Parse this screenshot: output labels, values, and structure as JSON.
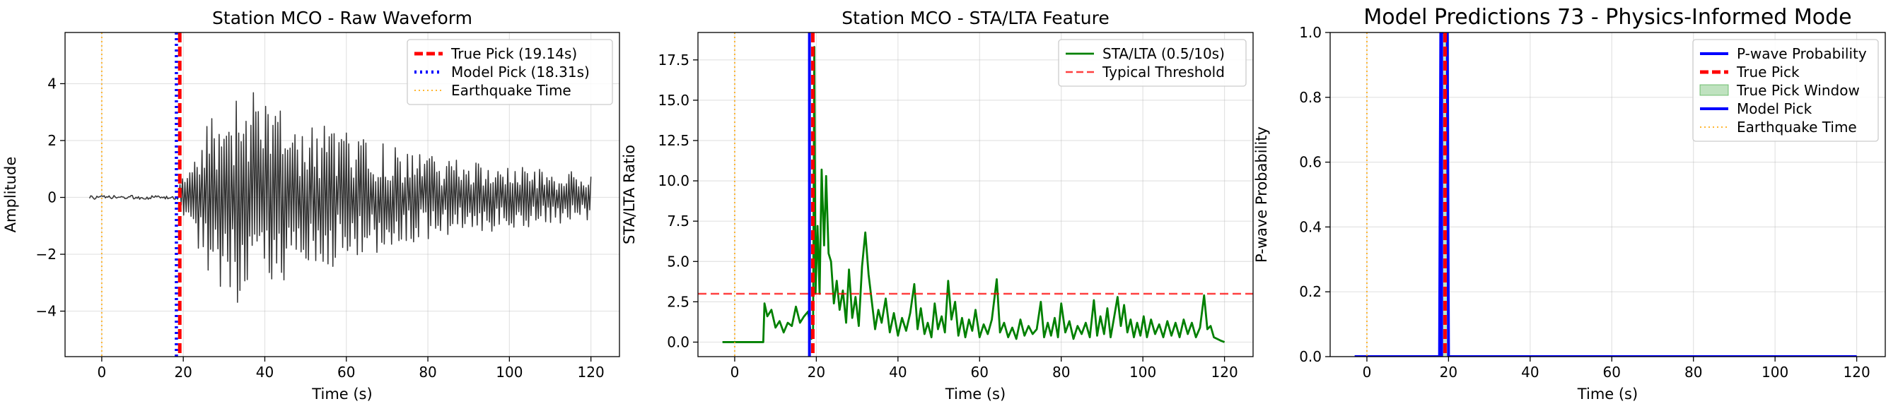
{
  "chart_data": [
    {
      "type": "line",
      "title": "Station MCO - Raw Waveform",
      "xlabel": "Time (s)",
      "ylabel": "Amplitude",
      "xlim": [
        -9,
        127
      ],
      "ylim": [
        -5.6,
        5.8
      ],
      "xticks": [
        0,
        20,
        40,
        60,
        80,
        100,
        120
      ],
      "yticks": [
        -4,
        -2,
        0,
        2,
        4
      ],
      "ytick_labels": [
        "−4",
        "−2",
        "0",
        "2",
        "4"
      ],
      "grid": true,
      "legend_position": "top-right",
      "series": [
        {
          "name": "",
          "kind": "waveform",
          "color": "#333333",
          "x_start": -3,
          "x_end": 120,
          "onset": 19.14
        }
      ],
      "vlines": [
        {
          "name": "True Pick (19.14s)",
          "x": 19.14,
          "color": "#ff0000",
          "style": "dashed"
        },
        {
          "name": "Model Pick (18.31s)",
          "x": 18.31,
          "color": "#0000ff",
          "style": "dotted"
        },
        {
          "name": "Earthquake Time",
          "x": 0,
          "color": "#ffa500",
          "style": "dotted-thin"
        }
      ]
    },
    {
      "type": "line",
      "title": "Station MCO - STA/LTA Feature",
      "xlabel": "Time (s)",
      "ylabel": "STA/LTA Ratio",
      "xlim": [
        -9,
        127
      ],
      "ylim": [
        -0.9,
        19.2
      ],
      "xticks": [
        0,
        20,
        40,
        60,
        80,
        100,
        120
      ],
      "yticks": [
        0,
        2.5,
        5,
        7.5,
        10,
        12.5,
        15,
        17.5
      ],
      "ytick_labels": [
        "0.0",
        "2.5",
        "5.0",
        "7.5",
        "10.0",
        "12.5",
        "15.0",
        "17.5"
      ],
      "grid": true,
      "legend_position": "top-right",
      "series": [
        {
          "name": "STA/LTA (0.5/10s)",
          "color": "#008000",
          "points": [
            [
              -3,
              0
            ],
            [
              7,
              0
            ],
            [
              7.3,
              2.4
            ],
            [
              8,
              1.6
            ],
            [
              9,
              2.0
            ],
            [
              10,
              0.9
            ],
            [
              11,
              1.3
            ],
            [
              12,
              0.6
            ],
            [
              13,
              1.2
            ],
            [
              14,
              1.0
            ],
            [
              15,
              2.2
            ],
            [
              16,
              1.2
            ],
            [
              17,
              1.6
            ],
            [
              18,
              1.9
            ],
            [
              18.8,
              0.2
            ],
            [
              19.2,
              0.4
            ],
            [
              19.5,
              18.3
            ],
            [
              19.8,
              3.0
            ],
            [
              20.3,
              7.2
            ],
            [
              20.8,
              3.0
            ],
            [
              21.3,
              10.7
            ],
            [
              21.9,
              6.0
            ],
            [
              22.4,
              10.3
            ],
            [
              23,
              5.5
            ],
            [
              23.6,
              5.0
            ],
            [
              24.3,
              2.4
            ],
            [
              25,
              3.8
            ],
            [
              25.7,
              2.0
            ],
            [
              26.5,
              3.2
            ],
            [
              27.3,
              1.2
            ],
            [
              28,
              4.5
            ],
            [
              28.8,
              1.5
            ],
            [
              29.6,
              2.8
            ],
            [
              30.4,
              1.0
            ],
            [
              31.2,
              4.7
            ],
            [
              32,
              6.8
            ],
            [
              32.8,
              4.2
            ],
            [
              33.6,
              2.5
            ],
            [
              34.4,
              0.8
            ],
            [
              35.2,
              2.0
            ],
            [
              36,
              1.2
            ],
            [
              37,
              2.7
            ],
            [
              38,
              0.6
            ],
            [
              39,
              1.8
            ],
            [
              40,
              0.4
            ],
            [
              41,
              1.5
            ],
            [
              42,
              0.7
            ],
            [
              43,
              1.8
            ],
            [
              44,
              3.6
            ],
            [
              44.8,
              0.8
            ],
            [
              45.6,
              2.1
            ],
            [
              46.5,
              0.5
            ],
            [
              47.3,
              1.2
            ],
            [
              48.2,
              0.3
            ],
            [
              49,
              2.4
            ],
            [
              49.8,
              0.8
            ],
            [
              50.7,
              1.6
            ],
            [
              51.5,
              0.6
            ],
            [
              52.3,
              3.8
            ],
            [
              53.1,
              1.4
            ],
            [
              54,
              2.5
            ],
            [
              54.8,
              0.4
            ],
            [
              55.7,
              1.5
            ],
            [
              56.5,
              0.3
            ],
            [
              57.4,
              1.4
            ],
            [
              58.2,
              0.7
            ],
            [
              59,
              2.0
            ],
            [
              60,
              0.3
            ],
            [
              61,
              1.1
            ],
            [
              62,
              0.5
            ],
            [
              63,
              1.4
            ],
            [
              64.2,
              3.9
            ],
            [
              65,
              0.6
            ],
            [
              66,
              1.2
            ],
            [
              67,
              0.3
            ],
            [
              68,
              0.9
            ],
            [
              69,
              0.2
            ],
            [
              70,
              1.4
            ],
            [
              71,
              0.4
            ],
            [
              72,
              1.0
            ],
            [
              73,
              0.5
            ],
            [
              74,
              0.8
            ],
            [
              75,
              2.5
            ],
            [
              75.8,
              0.3
            ],
            [
              76.7,
              1.2
            ],
            [
              77.5,
              0.4
            ],
            [
              78.4,
              1.5
            ],
            [
              79.2,
              0.3
            ],
            [
              80,
              2.4
            ],
            [
              81,
              0.6
            ],
            [
              82,
              1.3
            ],
            [
              83,
              0.2
            ],
            [
              84,
              1.0
            ],
            [
              85,
              0.5
            ],
            [
              86,
              1.2
            ],
            [
              87,
              0.3
            ],
            [
              88,
              2.6
            ],
            [
              88.8,
              0.4
            ],
            [
              89.6,
              1.6
            ],
            [
              90.5,
              0.5
            ],
            [
              91.3,
              2.1
            ],
            [
              92.1,
              0.3
            ],
            [
              93,
              1.6
            ],
            [
              93.8,
              2.8
            ],
            [
              94.6,
              1.0
            ],
            [
              95.4,
              2.3
            ],
            [
              96.2,
              0.6
            ],
            [
              97,
              1.4
            ],
            [
              97.8,
              0.3
            ],
            [
              98.6,
              1.2
            ],
            [
              99.4,
              0.4
            ],
            [
              100.2,
              1.6
            ],
            [
              101,
              0.3
            ],
            [
              102,
              1.4
            ],
            [
              103,
              0.5
            ],
            [
              104,
              1.1
            ],
            [
              105,
              0.3
            ],
            [
              106,
              1.3
            ],
            [
              107,
              0.4
            ],
            [
              108,
              1.2
            ],
            [
              109,
              0.3
            ],
            [
              110,
              1.4
            ],
            [
              111,
              0.5
            ],
            [
              112,
              1.2
            ],
            [
              113,
              0.3
            ],
            [
              114,
              0.9
            ],
            [
              115,
              2.9
            ],
            [
              115.8,
              0.8
            ],
            [
              116.6,
              1.0
            ],
            [
              117.4,
              0.3
            ],
            [
              118.2,
              0.2
            ],
            [
              119,
              0.1
            ],
            [
              120,
              0.0
            ]
          ]
        },
        {
          "name": "Typical Threshold",
          "kind": "hline",
          "y": 3.0,
          "color": "#ff0000",
          "style": "dashed"
        }
      ],
      "vlines": [
        {
          "name": "",
          "x": 19.14,
          "color": "#ff0000",
          "style": "dashed"
        },
        {
          "name": "",
          "x": 18.31,
          "color": "#0000ff",
          "style": "solid"
        },
        {
          "name": "",
          "x": 0,
          "color": "#ffa500",
          "style": "dotted-thin"
        }
      ]
    },
    {
      "type": "line",
      "title": "Model Predictions 73 - Physics-Informed Mode",
      "xlabel": "Time (s)",
      "ylabel": "P-wave Probability",
      "xlim": [
        -9,
        127
      ],
      "ylim": [
        0,
        1
      ],
      "xticks": [
        0,
        20,
        40,
        60,
        80,
        100,
        120
      ],
      "yticks": [
        0,
        0.2,
        0.4,
        0.6,
        0.8,
        1.0
      ],
      "ytick_labels": [
        "0.0",
        "0.2",
        "0.4",
        "0.6",
        "0.8",
        "1.0"
      ],
      "grid": true,
      "legend_position": "top-right",
      "series": [
        {
          "name": "P-wave Probability",
          "color": "#0000ff",
          "points": [
            [
              -3,
              0
            ],
            [
              17.8,
              0
            ],
            [
              18.1,
              1.0
            ],
            [
              19.7,
              1.0
            ],
            [
              20.0,
              0
            ],
            [
              120,
              0
            ]
          ]
        }
      ],
      "spans": [
        {
          "name": "True Pick Window",
          "x0": 18.14,
          "x1": 20.14,
          "color": "#2ca02c"
        }
      ],
      "vlines": [
        {
          "name": "True Pick",
          "x": 19.14,
          "color": "#ff0000",
          "style": "dashed"
        },
        {
          "name": "Model Pick",
          "x": 18.31,
          "color": "#0000ff",
          "style": "solid"
        },
        {
          "name": "Earthquake Time",
          "x": 0,
          "color": "#ffa500",
          "style": "dotted-thin"
        }
      ]
    }
  ]
}
